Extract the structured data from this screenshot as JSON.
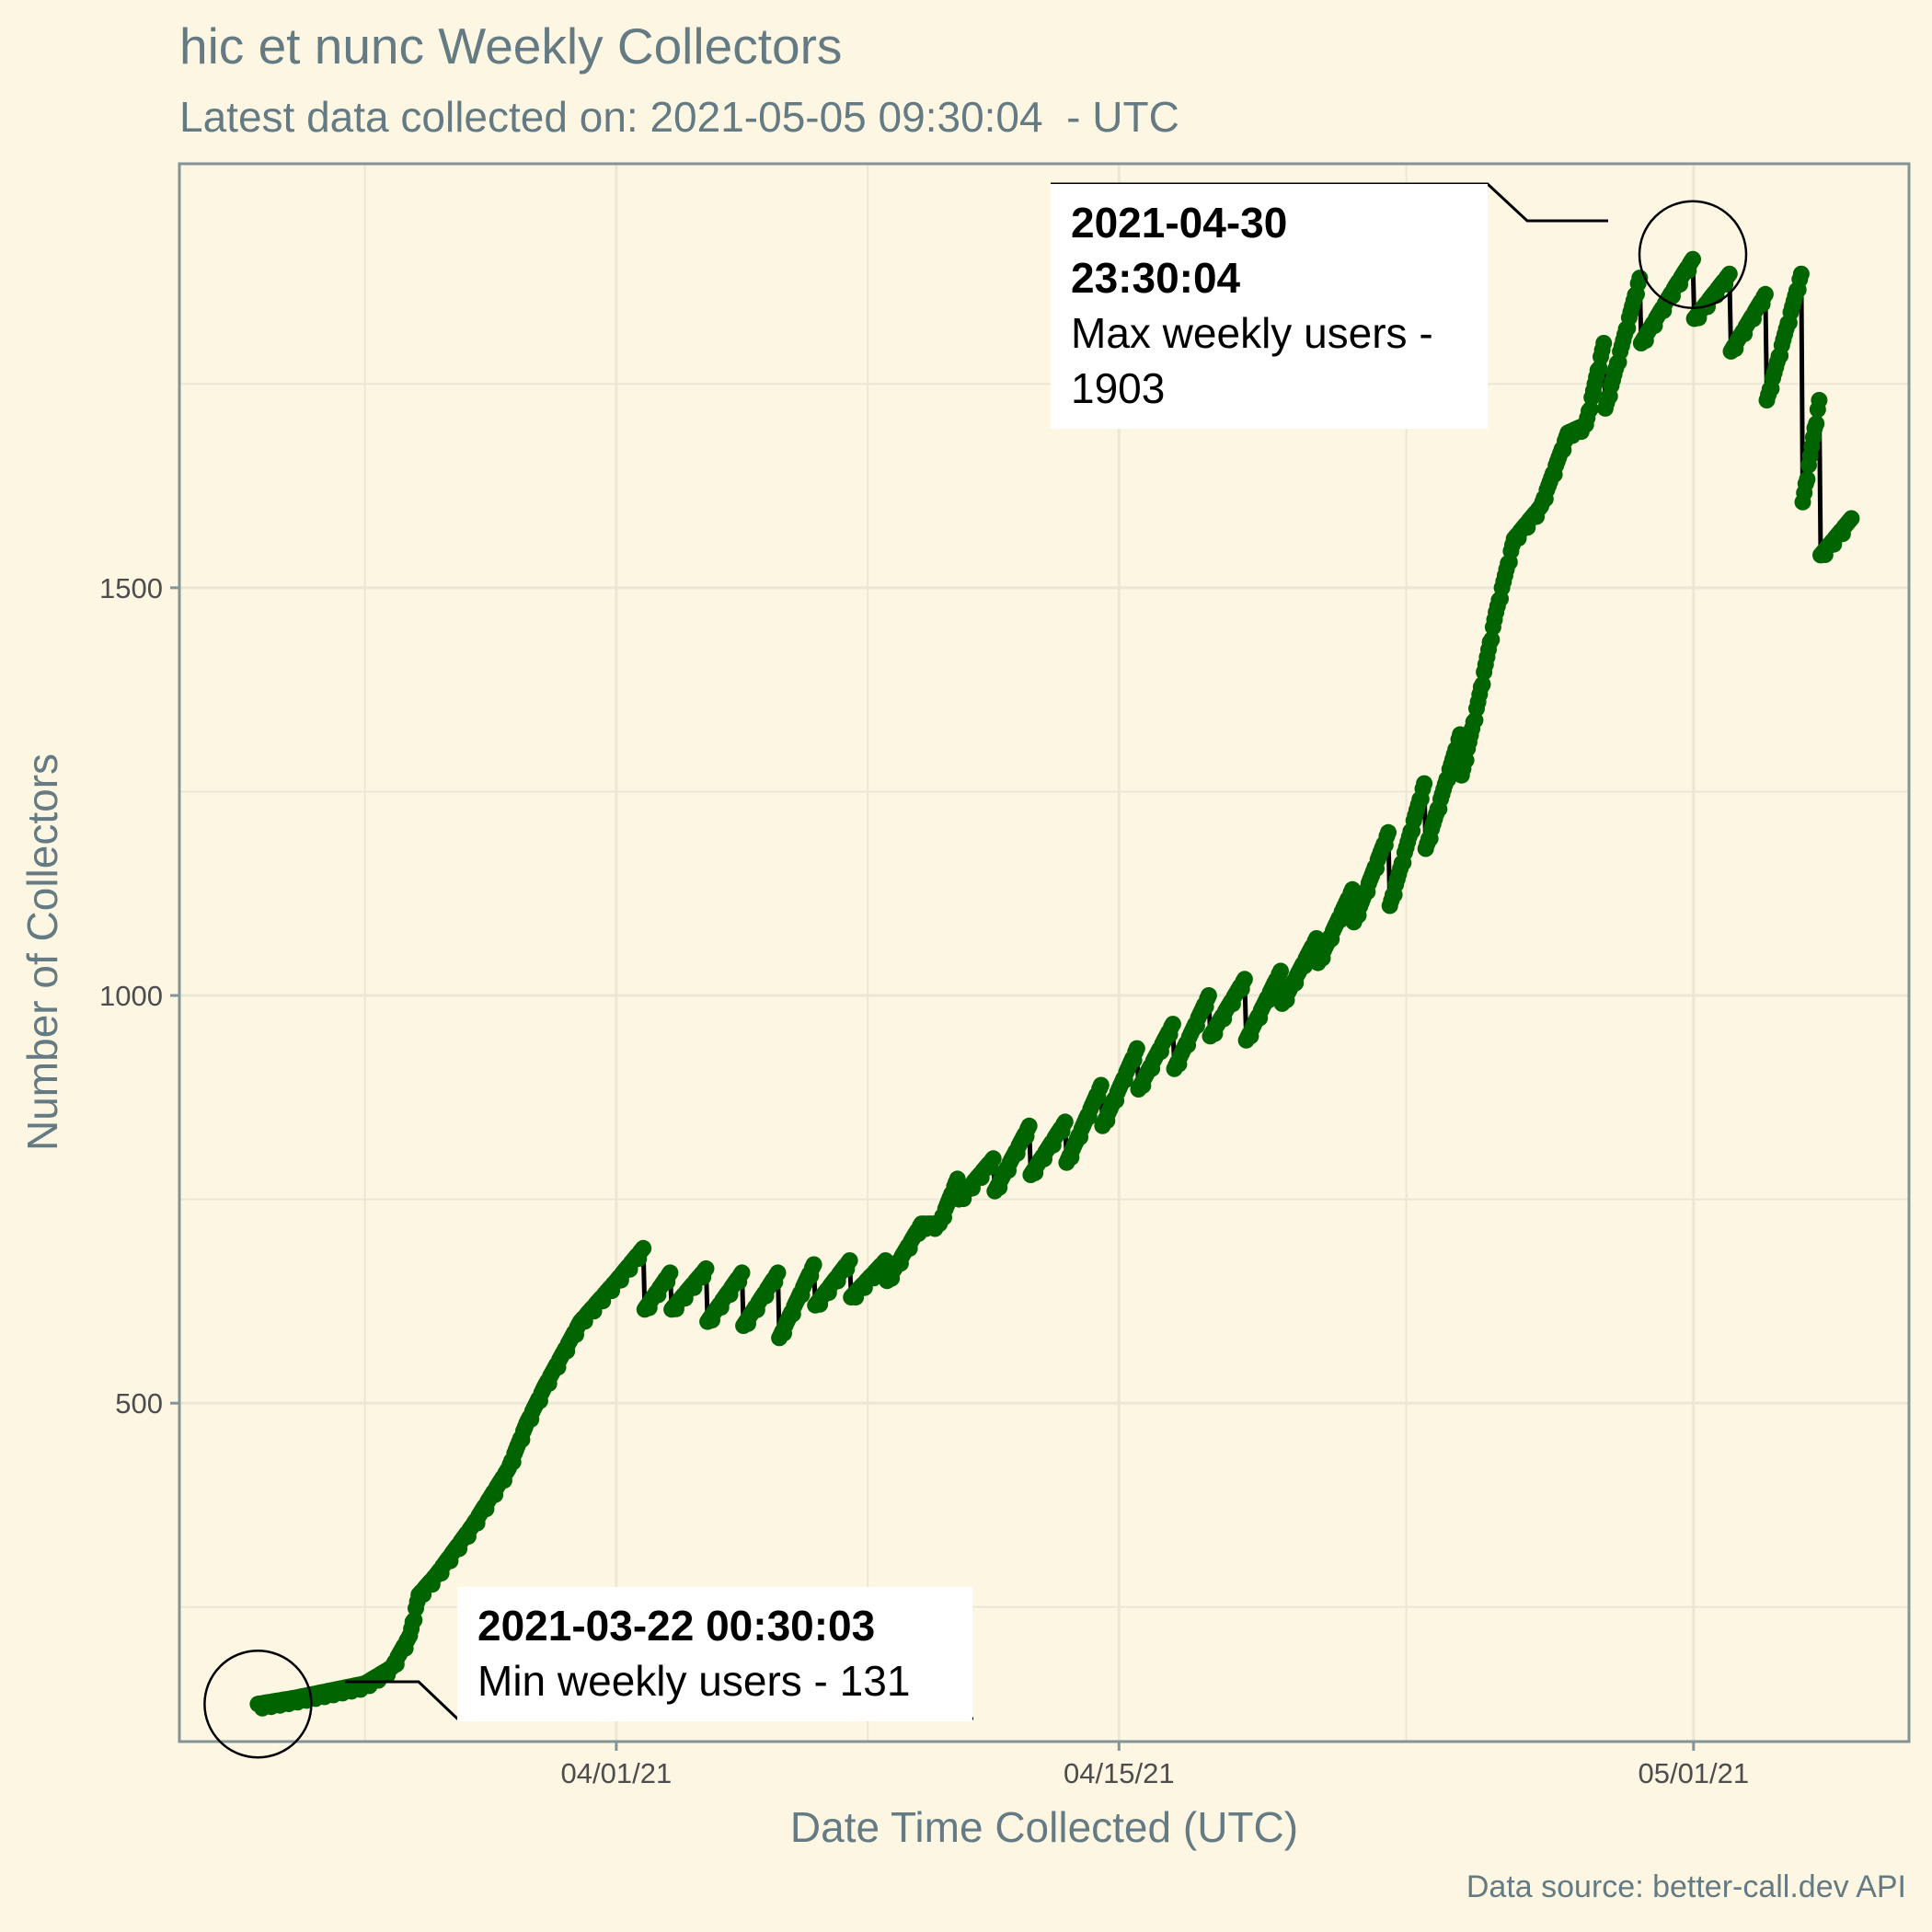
{
  "title": "hic et nunc Weekly Collectors",
  "subtitle": "Latest data collected on: 2021-05-05 09:30:04  - UTC",
  "caption": "Data source: better-call.dev API",
  "colors": {
    "background": "#fdf6e3",
    "points": "#006400",
    "line": "#000000",
    "grid": "#ece6d5",
    "frame": "#839496",
    "text": "#657b83"
  },
  "annotations": {
    "min": {
      "time": "2021-03-22 00:30:03",
      "label": "Min weekly users - 131"
    },
    "max": {
      "time": "2021-04-30 23:30:04",
      "label_line1": "Max weekly users -",
      "label_line2": "1903"
    }
  },
  "chart_data": {
    "type": "line",
    "title": "hic et nunc Weekly Collectors",
    "subtitle": "Latest data collected on: 2021-05-05 09:30:04  - UTC",
    "xlabel": "Date Time Collected (UTC)",
    "ylabel": "Number of Collectors",
    "x_ticks": [
      {
        "label": "04/01/21",
        "date": "2021-04-01"
      },
      {
        "label": "04/15/21",
        "date": "2021-04-15"
      },
      {
        "label": "05/01/21",
        "date": "2021-05-01"
      }
    ],
    "y_ticks": [
      500,
      1000,
      1500
    ],
    "xlim": [
      "2021-03-19 20:00",
      "2021-05-07 00:00"
    ],
    "ylim": [
      85,
      2020
    ],
    "grid": true,
    "legend": "none",
    "series": [
      {
        "marker": "point+line",
        "points": [
          [
            "2021-03-22 00:30",
            131
          ],
          [
            "2021-03-23 00:00",
            138
          ],
          [
            "2021-03-24 00:00",
            147
          ],
          [
            "2021-03-25 00:00",
            156
          ],
          [
            "2021-03-25 18:00",
            176
          ],
          [
            "2021-03-26 06:00",
            215
          ],
          [
            "2021-03-26 12:00",
            265
          ],
          [
            "2021-03-27 00:00",
            290
          ],
          [
            "2021-03-28 00:00",
            350
          ],
          [
            "2021-03-29 00:00",
            420
          ],
          [
            "2021-03-29 12:00",
            475
          ],
          [
            "2021-03-30 00:00",
            520
          ],
          [
            "2021-03-30 12:00",
            560
          ],
          [
            "2021-03-31 00:00",
            600
          ],
          [
            "2021-03-31 12:00",
            625
          ],
          [
            "2021-04-01 00:00",
            650
          ],
          [
            "2021-04-01 18:00",
            690
          ],
          [
            "2021-04-01 19:00",
            615
          ],
          [
            "2021-04-02 12:00",
            660
          ],
          [
            "2021-04-02 13:00",
            615
          ],
          [
            "2021-04-03 12:00",
            665
          ],
          [
            "2021-04-03 13:00",
            600
          ],
          [
            "2021-04-04 12:00",
            660
          ],
          [
            "2021-04-04 13:00",
            595
          ],
          [
            "2021-04-05 12:00",
            660
          ],
          [
            "2021-04-05 13:00",
            580
          ],
          [
            "2021-04-06 12:00",
            670
          ],
          [
            "2021-04-06 13:00",
            620
          ],
          [
            "2021-04-07 12:00",
            675
          ],
          [
            "2021-04-07 13:00",
            630
          ],
          [
            "2021-04-08 12:00",
            675
          ],
          [
            "2021-04-08 13:00",
            650
          ],
          [
            "2021-04-09 12:00",
            720
          ],
          [
            "2021-04-10 00:00",
            720
          ],
          [
            "2021-04-10 12:00",
            775
          ],
          [
            "2021-04-10 13:00",
            750
          ],
          [
            "2021-04-11 12:00",
            800
          ],
          [
            "2021-04-11 13:00",
            760
          ],
          [
            "2021-04-12 12:00",
            840
          ],
          [
            "2021-04-12 13:00",
            780
          ],
          [
            "2021-04-13 12:00",
            845
          ],
          [
            "2021-04-13 13:00",
            795
          ],
          [
            "2021-04-14 12:00",
            890
          ],
          [
            "2021-04-14 13:00",
            840
          ],
          [
            "2021-04-15 12:00",
            935
          ],
          [
            "2021-04-15 13:00",
            885
          ],
          [
            "2021-04-16 12:00",
            965
          ],
          [
            "2021-04-16 13:00",
            910
          ],
          [
            "2021-04-17 12:00",
            1000
          ],
          [
            "2021-04-17 13:00",
            950
          ],
          [
            "2021-04-18 12:00",
            1020
          ],
          [
            "2021-04-18 13:00",
            945
          ],
          [
            "2021-04-19 12:00",
            1030
          ],
          [
            "2021-04-19 13:00",
            990
          ],
          [
            "2021-04-20 12:00",
            1070
          ],
          [
            "2021-04-20 13:00",
            1040
          ],
          [
            "2021-04-21 12:00",
            1130
          ],
          [
            "2021-04-21 13:00",
            1090
          ],
          [
            "2021-04-22 12:00",
            1200
          ],
          [
            "2021-04-22 13:00",
            1110
          ],
          [
            "2021-04-23 12:00",
            1260
          ],
          [
            "2021-04-23 13:00",
            1180
          ],
          [
            "2021-04-24 12:00",
            1320
          ],
          [
            "2021-04-24 13:00",
            1270
          ],
          [
            "2021-04-25 00:00",
            1360
          ],
          [
            "2021-04-25 12:00",
            1470
          ],
          [
            "2021-04-26 00:00",
            1560
          ],
          [
            "2021-04-26 18:00",
            1600
          ],
          [
            "2021-04-27 12:00",
            1690
          ],
          [
            "2021-04-28 00:00",
            1700
          ],
          [
            "2021-04-28 12:00",
            1800
          ],
          [
            "2021-04-28 13:00",
            1720
          ],
          [
            "2021-04-29 12:00",
            1880
          ],
          [
            "2021-04-29 13:00",
            1800
          ],
          [
            "2021-04-30 12:00",
            1870
          ],
          [
            "2021-04-30 23:30",
            1903
          ],
          [
            "2021-05-01 00:30",
            1830
          ],
          [
            "2021-05-02 00:00",
            1885
          ],
          [
            "2021-05-02 01:00",
            1790
          ],
          [
            "2021-05-03 00:00",
            1860
          ],
          [
            "2021-05-03 01:00",
            1730
          ],
          [
            "2021-05-04 00:00",
            1885
          ],
          [
            "2021-05-04 01:00",
            1605
          ],
          [
            "2021-05-04 12:00",
            1730
          ],
          [
            "2021-05-04 13:00",
            1540
          ],
          [
            "2021-05-05 09:30",
            1585
          ]
        ]
      }
    ],
    "annotations": [
      {
        "x": "2021-03-22 00:30:03",
        "y": 131,
        "label": "Min weekly users - 131"
      },
      {
        "x": "2021-04-30 23:30:04",
        "y": 1903,
        "label": "Max weekly users - 1903"
      }
    ]
  }
}
